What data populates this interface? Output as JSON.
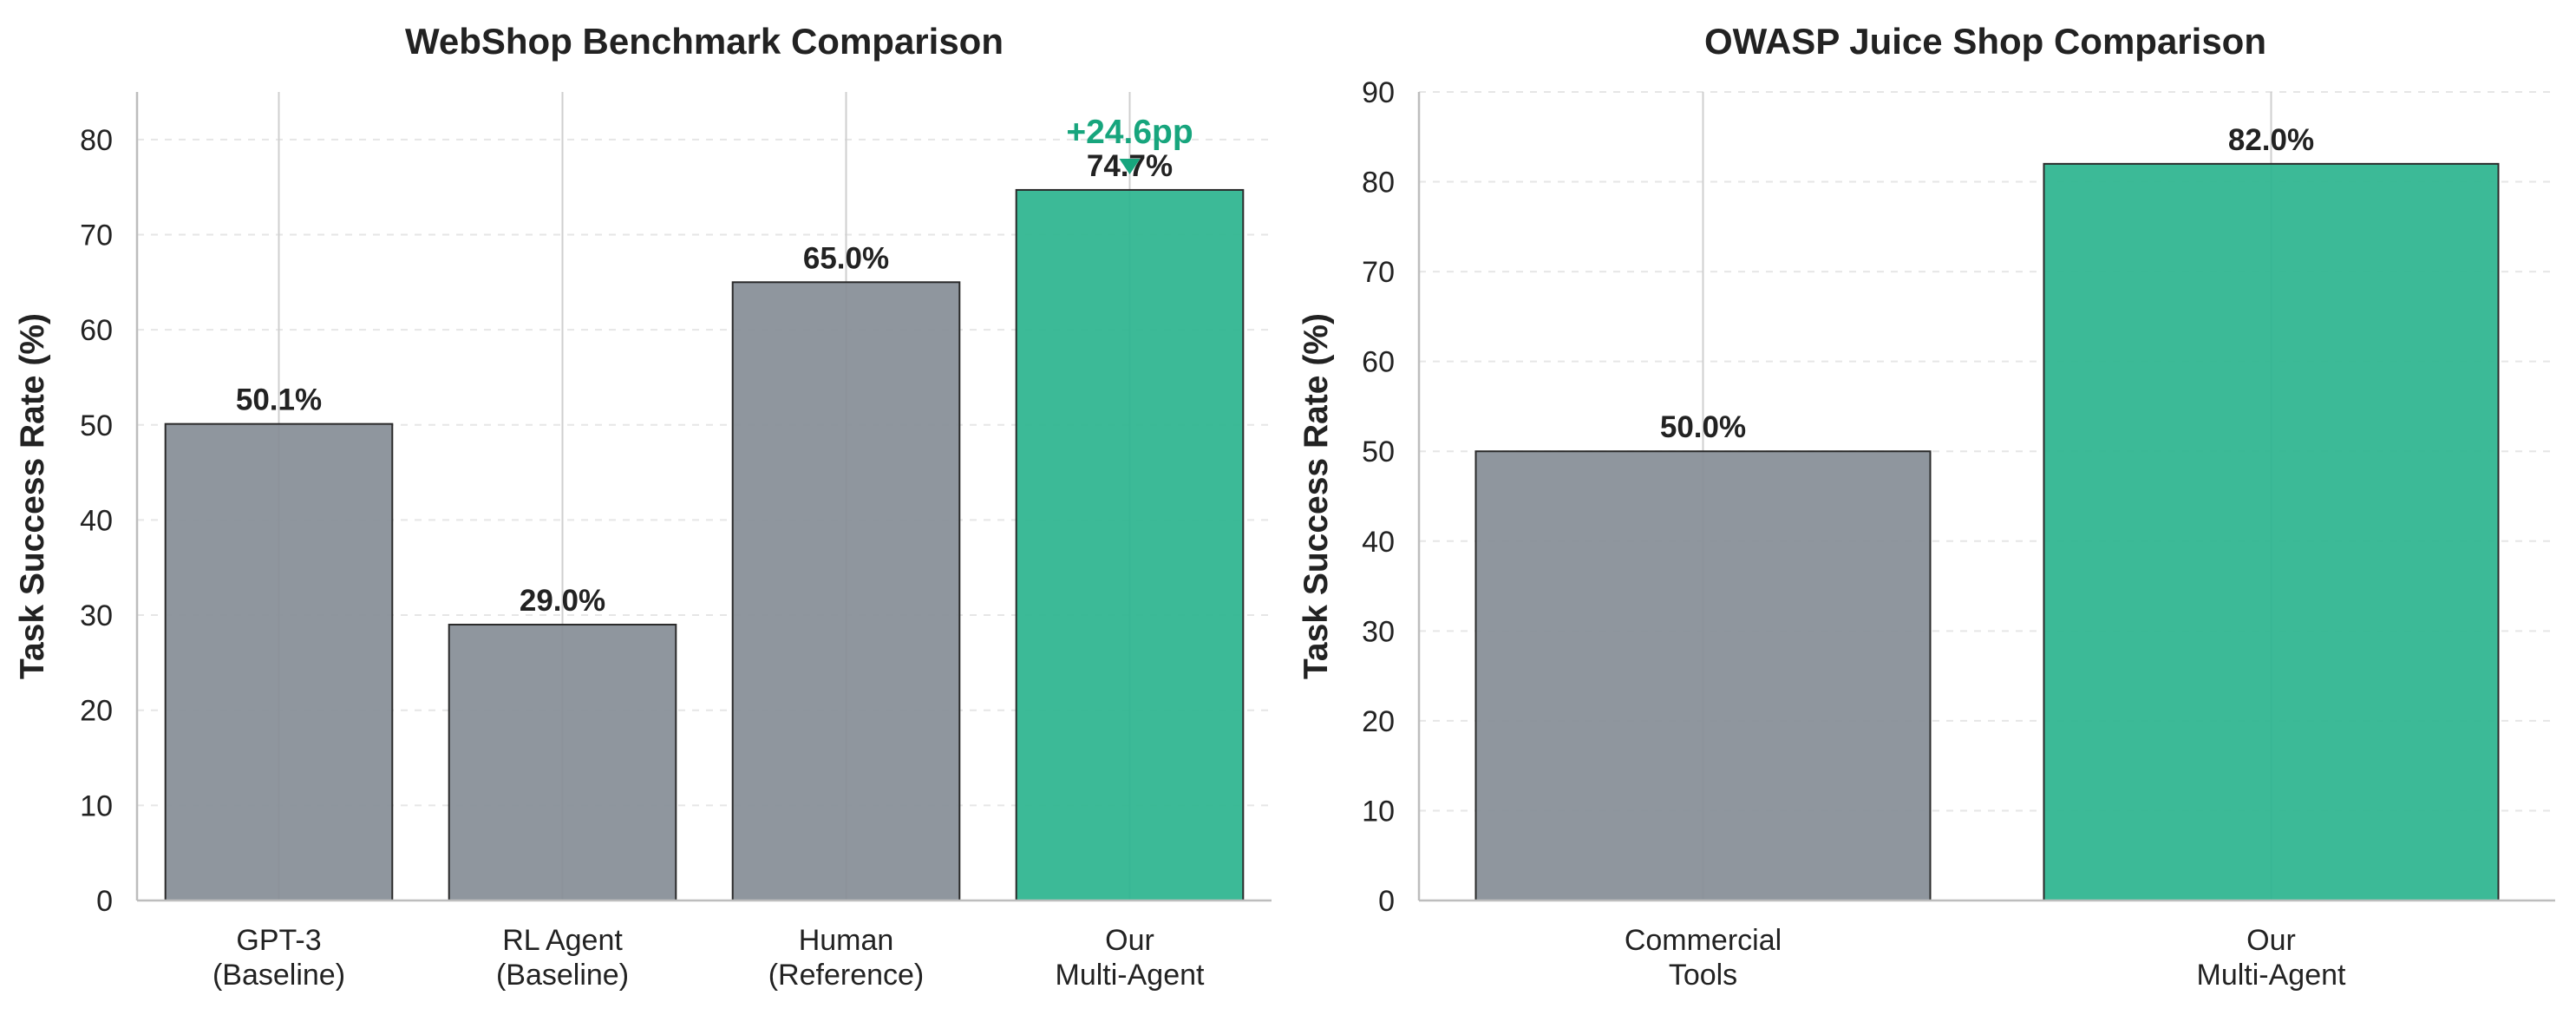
{
  "chart_data": [
    {
      "type": "bar",
      "title": "WebShop Benchmark Comparison",
      "xlabel": "",
      "ylabel": "Task Success Rate (%)",
      "ylim": [
        0,
        85
      ],
      "yticks": [
        0,
        10,
        20,
        30,
        40,
        50,
        60,
        70,
        80
      ],
      "grid": true,
      "categories": [
        [
          "GPT-3",
          "(Baseline)"
        ],
        [
          "RL Agent",
          "(Baseline)"
        ],
        [
          "Human",
          "(Reference)"
        ],
        [
          "Our",
          "Multi-Agent"
        ]
      ],
      "values": [
        50.1,
        29.0,
        65.0,
        74.7
      ],
      "value_labels": [
        "50.1%",
        "29.0%",
        "65.0%",
        "74.7%"
      ],
      "colors": [
        "#878e97",
        "#878e97",
        "#878e97",
        "#2db58f"
      ],
      "annotation": {
        "text": "+24.6pp",
        "bar_index": 3,
        "color": "#17a57d"
      }
    },
    {
      "type": "bar",
      "title": "OWASP Juice Shop Comparison",
      "xlabel": "",
      "ylabel": "Task Success Rate (%)",
      "ylim": [
        0,
        90
      ],
      "yticks": [
        0,
        10,
        20,
        30,
        40,
        50,
        60,
        70,
        80,
        90
      ],
      "grid": true,
      "categories": [
        [
          "Commercial",
          "Tools"
        ],
        [
          "Our",
          "Multi-Agent"
        ]
      ],
      "values": [
        50.0,
        82.0
      ],
      "value_labels": [
        "50.0%",
        "82.0%"
      ],
      "colors": [
        "#878e97",
        "#2db58f"
      ]
    }
  ]
}
